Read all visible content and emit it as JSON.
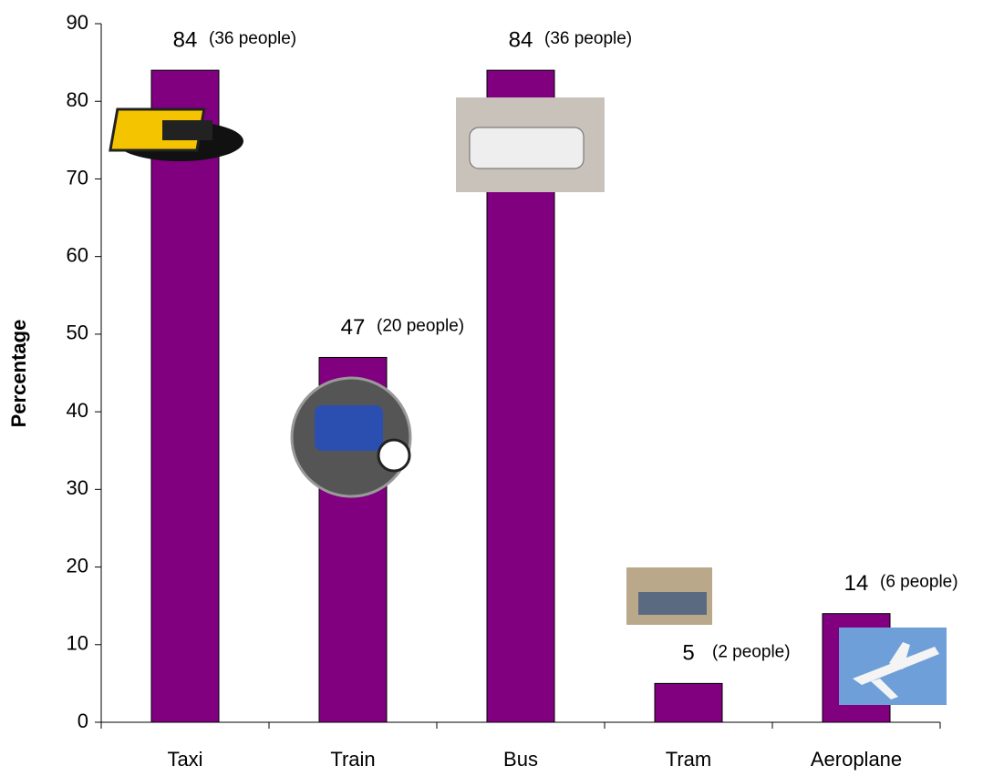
{
  "chart_data": {
    "type": "bar",
    "y_label": "Percentage",
    "categories": [
      "Taxi",
      "Train",
      "Bus",
      "Tram",
      "Aeroplane"
    ],
    "values": [
      84,
      47,
      84,
      5,
      14
    ],
    "annotations": [
      "(36 people)",
      "(20 people)",
      "(36 people)",
      "(2 people)",
      "(6 people)"
    ],
    "color": "#800080",
    "ylim": [
      0,
      90
    ],
    "yticks": [
      0,
      10,
      20,
      30,
      40,
      50,
      60,
      70,
      80,
      90
    ],
    "grid": false
  }
}
